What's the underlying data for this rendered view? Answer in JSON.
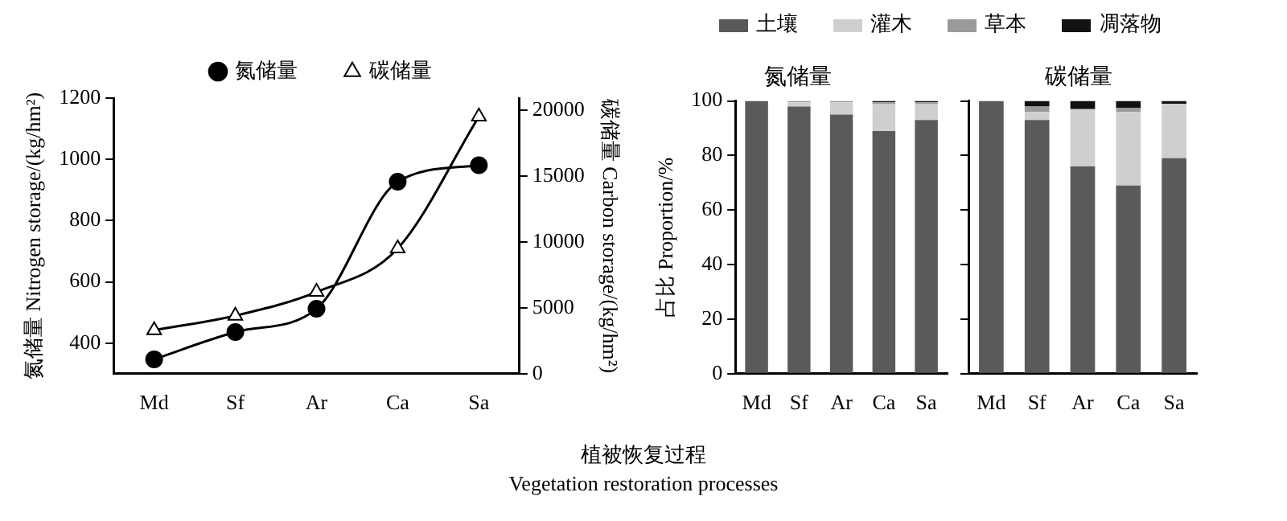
{
  "chart_data": [
    {
      "type": "line",
      "xlabel": "植被恢复过程\nVegetation restoration processes",
      "ylabel": "氮储量 Nitrogen storage/(kg/hm²)",
      "y2label": "碳储量 Carbon storage/(kg/hm²)",
      "categories": [
        "Md",
        "Sf",
        "Ar",
        "Ca",
        "Sa"
      ],
      "series": [
        {
          "name": "氮储量",
          "color": "#000000",
          "marker": "circle",
          "values": [
            347,
            436,
            512,
            927,
            981
          ]
        },
        {
          "name": "碳储量",
          "color": "#000000",
          "marker": "triangle",
          "axis": "y2",
          "values": [
            3300,
            4400,
            6200,
            9500,
            19500
          ]
        }
      ],
      "ylim": [
        300,
        1200
      ],
      "yticks": [
        400,
        600,
        800,
        1000,
        1200
      ],
      "y2lim": [
        0,
        20900
      ],
      "y2ticks": [
        0,
        5000,
        10000,
        15000,
        20000
      ],
      "grid": false,
      "legend": "top"
    },
    {
      "type": "bar",
      "title": "氮储量",
      "ylabel": "占比 Proportion/%",
      "categories": [
        "Md",
        "Sf",
        "Ar",
        "Ca",
        "Sa"
      ],
      "stacked": true,
      "series": [
        {
          "name": "土壤",
          "color": "#5a5a5a",
          "values": [
            100,
            98,
            95,
            89,
            93
          ]
        },
        {
          "name": "灌木",
          "color": "#cfcfcf",
          "values": [
            0,
            1.5,
            4.5,
            10,
            6
          ]
        },
        {
          "name": "草本",
          "color": "#9a9a9a",
          "values": [
            0,
            0.5,
            0.5,
            0.5,
            0.5
          ]
        },
        {
          "name": "凋落物",
          "color": "#111111",
          "values": [
            0,
            0,
            0,
            0.5,
            0.5
          ]
        }
      ],
      "ylim": [
        0,
        100
      ],
      "yticks": [
        0,
        20,
        40,
        60,
        80,
        100
      ],
      "grid": false,
      "legend": "top"
    },
    {
      "type": "bar",
      "title": "碳储量",
      "categories": [
        "Md",
        "Sf",
        "Ar",
        "Ca",
        "Sa"
      ],
      "stacked": true,
      "series": [
        {
          "color": "#5a5a5a",
          "values": [
            100,
            93,
            76,
            69,
            79
          ]
        },
        {
          "color": "#cfcfcf",
          "values": [
            0,
            3,
            21,
            27,
            20
          ]
        },
        {
          "color": "#9a9a9a",
          "values": [
            0,
            2,
            0,
            1.5,
            0
          ]
        },
        {
          "color": "#111111",
          "values": [
            0,
            2,
            3,
            2.5,
            1
          ]
        }
      ],
      "ylim": [
        0,
        100
      ],
      "yticks": [
        0,
        20,
        40,
        60,
        80,
        100
      ],
      "grid": false,
      "tick_labels": "x"
    }
  ]
}
